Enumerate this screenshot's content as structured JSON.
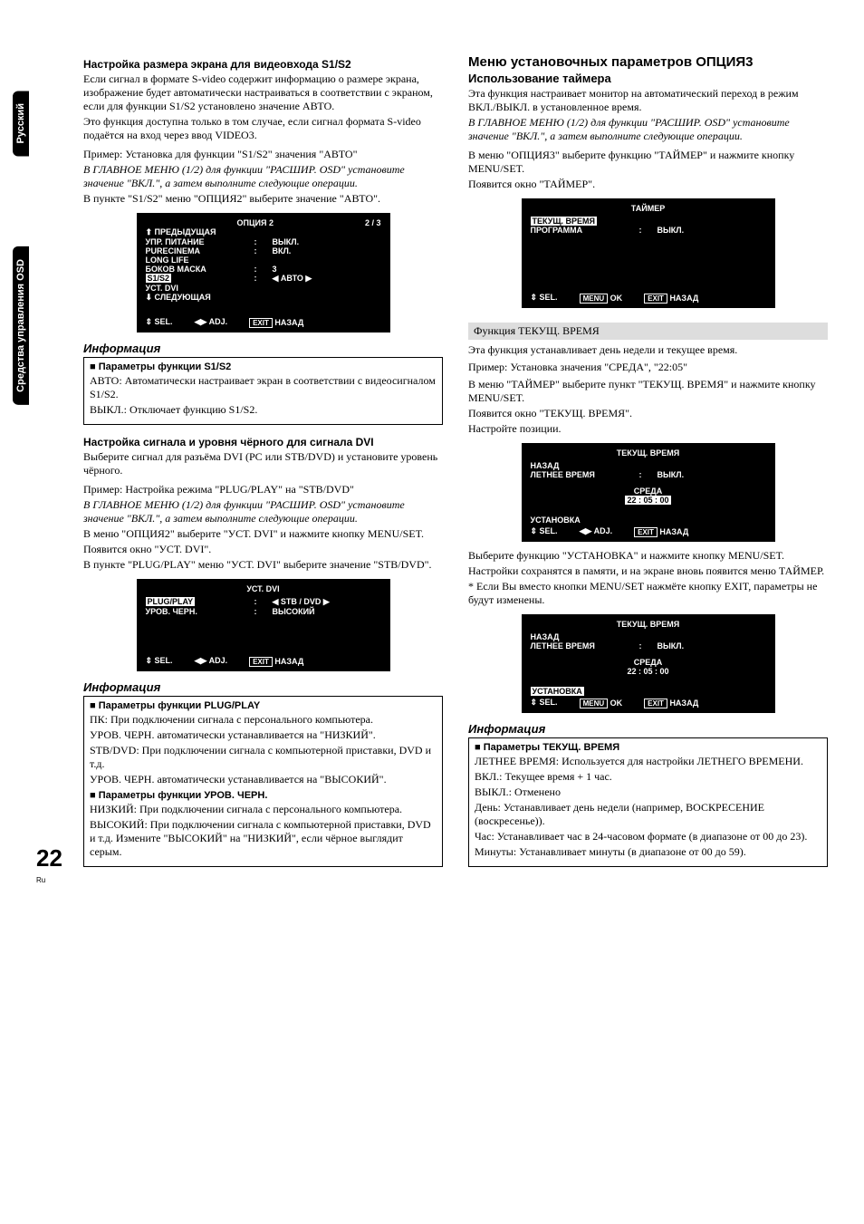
{
  "sidetabs": [
    "Русский",
    "Средства управления OSD"
  ],
  "left": {
    "s1s2": {
      "h": "Настройка размера экрана для видеовхода S1/S2",
      "p1": "Если сигнал в формате S-video содержит информацию о размере экрана, изображение будет автоматически настраиваться в соответствии с экраном, если для функции S1/S2 установлено значение АВТО.",
      "p2": "Это функция доступна только в том случае, если сигнал формата S-video подаётся на вход через ввод VIDEO3.",
      "p3": "Пример: Установка для функции \"S1/S2\" значения \"АВТО\"",
      "p4": "В ГЛАВНОЕ МЕНЮ (1/2) для функции \"РАСШИР. OSD\" установите значение \"ВКЛ.\", а затем выполните следующие операции.",
      "p5": "В пункте \"S1/S2\" меню \"ОПЦИЯ2\" выберите значение \"АВТО\"."
    },
    "osd1": {
      "title": "ОПЦИЯ 2",
      "page": "2 / 3",
      "rows": [
        {
          "l": "⬆ ПРЕДЫДУЩАЯ",
          "c": "",
          "r": ""
        },
        {
          "l": "УПР. ПИТАНИЕ",
          "c": ":",
          "r": "ВЫКЛ."
        },
        {
          "l": "PURECINEMA",
          "c": ":",
          "r": "ВКЛ."
        },
        {
          "l": "LONG LIFE",
          "c": "",
          "r": ""
        },
        {
          "l": "БОКОВ МАСКА",
          "c": ":",
          "r": "3"
        },
        {
          "l": "S1/S2",
          "c": ":",
          "r": "◀ АВТО ▶",
          "hl": true
        },
        {
          "l": "УСТ. DVI",
          "c": "",
          "r": ""
        },
        {
          "l": "⬇ СЛЕДУЮЩАЯ",
          "c": "",
          "r": ""
        }
      ],
      "foot": {
        "sel": "SEL.",
        "adj": "ADJ.",
        "exit": "EXIT",
        "back": "НАЗАД"
      }
    },
    "info1": {
      "title": "Информация",
      "h": "Параметры функции S1/S2",
      "p1": "АВТО: Автоматически настраивает экран в соответствии с видеосигналом S1/S2.",
      "p2": "ВЫКЛ.: Отключает функцию S1/S2."
    },
    "dvi": {
      "h": "Настройка сигнала и уровня чёрного для сигнала DVI",
      "p1": "Выберите сигнал для разъёма DVI (PC или STB/DVD) и установите уровень чёрного.",
      "p2": "Пример: Настройка режима \"PLUG/PLAY\" на \"STB/DVD\"",
      "p3": "В ГЛАВНОЕ МЕНЮ (1/2) для функции \"РАСШИР. OSD\" установите значение \"ВКЛ.\", а затем выполните следующие операции.",
      "p4": "В меню \"ОПЦИЯ2\" выберите \"УСТ. DVI\" и нажмите кнопку MENU/SET.",
      "p5": "Появится окно \"УСТ. DVI\".",
      "p6": "В пункте \"PLUG/PLAY\" меню \"УСТ. DVI\" выберите значение \"STB/DVD\"."
    },
    "osd2": {
      "title": "УСТ. DVI",
      "rows": [
        {
          "l": "PLUG/PLAY",
          "c": ":",
          "r": "◀ STB / DVD ▶",
          "hl": true
        },
        {
          "l": "УРОВ. ЧЕРН.",
          "c": ":",
          "r": "ВЫСОКИЙ"
        }
      ]
    },
    "info2": {
      "title": "Информация",
      "h1": "Параметры функции PLUG/PLAY",
      "p1": "ПК: При подключении сигнала с персонального компьютера.",
      "p2": "УРОВ. ЧЕРН. автоматически устанавливается на \"НИЗКИЙ\".",
      "p3": "STB/DVD: При подключении сигнала с компьютерной приставки, DVD и т.д.",
      "p4": "УРОВ. ЧЕРН. автоматически устанавливается на \"ВЫСОКИЙ\".",
      "h2": "Параметры функции УРОВ. ЧЕРН.",
      "p5": "НИЗКИЙ: При подключении сигнала с персонального компьютера.",
      "p6": "ВЫСОКИЙ: При подключении сигнала с компьютерной приставки, DVD и т.д. Измените \"ВЫСОКИЙ\" на \"НИЗКИЙ\", если чёрное выглядит серым."
    }
  },
  "right": {
    "h": "Меню установочных параметров ОПЦИЯ3",
    "sub": "Использование таймера",
    "p1": "Эта функция настраивает монитор на автоматический переход в режим ВКЛ./ВЫКЛ. в установленное время.",
    "p2": "В ГЛАВНОЕ МЕНЮ (1/2) для функции \"РАСШИР. OSD\" установите значение \"ВКЛ.\", а затем выполните следующие операции.",
    "p3": "В меню \"ОПЦИЯ3\" выберите функцию \"ТАЙМЕР\" и нажмите кнопку MENU/SET.",
    "p4": "Появится окно \"ТАЙМЕР\".",
    "osd3": {
      "title": "ТАЙМЕР",
      "rows": [
        {
          "l": "ТЕКУЩ. ВРЕМЯ",
          "c": "",
          "r": "",
          "hl": true
        },
        {
          "l": "ПРОГРАММА",
          "c": ":",
          "r": "ВЫКЛ."
        }
      ],
      "foot": {
        "sel": "SEL.",
        "menu": "MENU",
        "ok": "OK",
        "exit": "EXIT",
        "back": "НАЗАД"
      }
    },
    "grey": "Функция ТЕКУЩ. ВРЕМЯ",
    "p5": "Эта функция устанавливает день недели и текущее время.",
    "p6": "Пример: Установка значения \"СРЕДА\", \"22:05\"",
    "p7": "В меню \"ТАЙМЕР\" выберите пункт \"ТЕКУЩ. ВРЕМЯ\" и нажмите кнопку MENU/SET.",
    "p8": "Появится окно \"ТЕКУЩ. ВРЕМЯ\".",
    "p9": "Настройте позиции.",
    "osd4": {
      "title": "ТЕКУЩ. ВРЕМЯ",
      "rows": [
        {
          "l": "НАЗАД",
          "c": "",
          "r": ""
        },
        {
          "l": "ЛЕТНЕЕ ВРЕМЯ",
          "c": ":",
          "r": "ВЫКЛ."
        }
      ],
      "mid1": "СРЕДА",
      "mid2": "22 : 05 : 00",
      "bottom": "УСТАНОВКА",
      "foot": {
        "sel": "SEL.",
        "adj": "ADJ.",
        "exit": "EXIT",
        "back": "НАЗАД"
      }
    },
    "p10": "Выберите функцию \"УСТАНОВКА\" и нажмите кнопку MENU/SET.",
    "p11": "Настройки сохранятся в памяти, и на экране вновь появится меню ТАЙМЕР.",
    "p12": "* Если Вы вместо кнопки MENU/SET нажмёте кнопку EXIT, параметры не будут изменены.",
    "osd5": {
      "title": "ТЕКУЩ. ВРЕМЯ",
      "rows": [
        {
          "l": "НАЗАД",
          "c": "",
          "r": ""
        },
        {
          "l": "ЛЕТНЕЕ ВРЕМЯ",
          "c": ":",
          "r": "ВЫКЛ."
        }
      ],
      "mid1": "СРЕДА",
      "mid2": "22 : 05 : 00",
      "bottom": "УСТАНОВКА",
      "bottomHl": true,
      "foot": {
        "sel": "SEL.",
        "menu": "MENU",
        "ok": "OK",
        "exit": "EXIT",
        "back": "НАЗАД"
      }
    },
    "info3": {
      "title": "Информация",
      "h": "Параметры ТЕКУЩ. ВРЕМЯ",
      "p1": "ЛЕТНЕЕ ВРЕМЯ: Используется для настройки ЛЕТНЕГО ВРЕМЕНИ.",
      "p2": "ВКЛ.:   Текущее время + 1 час.",
      "p3": "ВЫКЛ.: Отменено",
      "p4": "День: Устанавливает день недели (например, ВОСКРЕСЕНИЕ (воскресенье)).",
      "p5": "Час: Устанавливает час в 24-часовом формате (в диапазоне от 00 до 23).",
      "p6": "Минуты: Устанавливает минуты (в диапазоне от 00 до 59)."
    }
  },
  "page": {
    "n": "22",
    "lang": "Ru"
  }
}
